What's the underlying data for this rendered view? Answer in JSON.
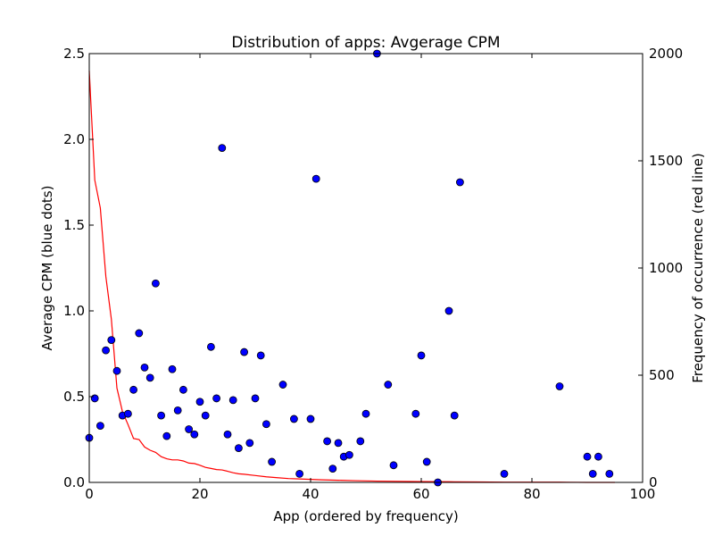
{
  "chart_data": {
    "type": "scatter",
    "title": "Distribution of apps: Avgerage CPM",
    "xlabel": "App (ordered by frequency)",
    "ylabel": "Average CPM (blue dots)",
    "y2label": "Frequency of occurrence (red line)",
    "xlim": [
      0,
      100
    ],
    "ylim": [
      0,
      2.5
    ],
    "y2lim": [
      0,
      2000
    ],
    "x_ticks": [
      0,
      20,
      40,
      60,
      80,
      100
    ],
    "y_ticks": [
      0.0,
      0.5,
      1.0,
      1.5,
      2.0,
      2.5
    ],
    "y_tick_labels": [
      "0.0",
      "0.5",
      "1.0",
      "1.5",
      "2.0",
      "2.5"
    ],
    "y2_ticks": [
      0,
      500,
      1000,
      1500,
      2000
    ],
    "grid": false,
    "colors": {
      "dots": "#0000ff",
      "dot_edge": "#000000",
      "line": "#ff0000"
    },
    "series": [
      {
        "type": "scatter",
        "axis": "left",
        "points": [
          [
            0,
            0.26
          ],
          [
            1,
            0.49
          ],
          [
            2,
            0.33
          ],
          [
            3,
            0.77
          ],
          [
            4,
            0.83
          ],
          [
            5,
            0.65
          ],
          [
            6,
            0.39
          ],
          [
            7,
            0.4
          ],
          [
            8,
            0.54
          ],
          [
            9,
            0.87
          ],
          [
            10,
            0.67
          ],
          [
            11,
            0.61
          ],
          [
            12,
            1.16
          ],
          [
            13,
            0.39
          ],
          [
            14,
            0.27
          ],
          [
            15,
            0.66
          ],
          [
            16,
            0.42
          ],
          [
            17,
            0.54
          ],
          [
            18,
            0.31
          ],
          [
            19,
            0.28
          ],
          [
            20,
            0.47
          ],
          [
            21,
            0.39
          ],
          [
            22,
            0.79
          ],
          [
            23,
            0.49
          ],
          [
            24,
            1.95
          ],
          [
            25,
            0.28
          ],
          [
            26,
            0.48
          ],
          [
            27,
            0.2
          ],
          [
            28,
            0.76
          ],
          [
            29,
            0.23
          ],
          [
            30,
            0.49
          ],
          [
            31,
            0.74
          ],
          [
            32,
            0.34
          ],
          [
            33,
            0.12
          ],
          [
            35,
            0.57
          ],
          [
            37,
            0.37
          ],
          [
            38,
            0.05
          ],
          [
            40,
            0.37
          ],
          [
            41,
            1.77
          ],
          [
            43,
            0.24
          ],
          [
            44,
            0.08
          ],
          [
            45,
            0.23
          ],
          [
            46,
            0.15
          ],
          [
            47,
            0.16
          ],
          [
            49,
            0.24
          ],
          [
            50,
            0.4
          ],
          [
            52,
            2.5
          ],
          [
            54,
            0.57
          ],
          [
            55,
            0.1
          ],
          [
            59,
            0.4
          ],
          [
            60,
            0.74
          ],
          [
            61,
            0.12
          ],
          [
            63,
            0.0
          ],
          [
            65,
            1.0
          ],
          [
            66,
            0.39
          ],
          [
            67,
            1.75
          ],
          [
            75,
            0.05
          ],
          [
            85,
            0.56
          ],
          [
            90,
            0.15
          ],
          [
            91,
            0.05
          ],
          [
            92,
            0.15
          ],
          [
            94,
            0.05
          ]
        ]
      },
      {
        "type": "line",
        "axis": "right",
        "points": [
          [
            0,
            1920
          ],
          [
            1,
            1410
          ],
          [
            2,
            1280
          ],
          [
            3,
            960
          ],
          [
            4,
            760
          ],
          [
            5,
            440
          ],
          [
            6,
            330
          ],
          [
            7,
            270
          ],
          [
            8,
            205
          ],
          [
            9,
            200
          ],
          [
            10,
            165
          ],
          [
            11,
            150
          ],
          [
            12,
            140
          ],
          [
            13,
            120
          ],
          [
            14,
            110
          ],
          [
            15,
            105
          ],
          [
            16,
            105
          ],
          [
            17,
            100
          ],
          [
            18,
            90
          ],
          [
            19,
            88
          ],
          [
            20,
            80
          ],
          [
            21,
            70
          ],
          [
            22,
            65
          ],
          [
            23,
            60
          ],
          [
            24,
            58
          ],
          [
            25,
            52
          ],
          [
            26,
            45
          ],
          [
            27,
            40
          ],
          [
            28,
            38
          ],
          [
            30,
            32
          ],
          [
            32,
            26
          ],
          [
            34,
            22
          ],
          [
            36,
            18
          ],
          [
            38,
            16
          ],
          [
            40,
            14
          ],
          [
            42,
            12
          ],
          [
            45,
            10
          ],
          [
            48,
            8
          ],
          [
            52,
            6
          ],
          [
            56,
            5
          ],
          [
            60,
            4
          ],
          [
            65,
            3
          ],
          [
            70,
            2
          ],
          [
            75,
            1
          ],
          [
            80,
            1
          ],
          [
            85,
            1
          ],
          [
            90,
            0
          ],
          [
            95,
            0
          ]
        ]
      }
    ]
  }
}
